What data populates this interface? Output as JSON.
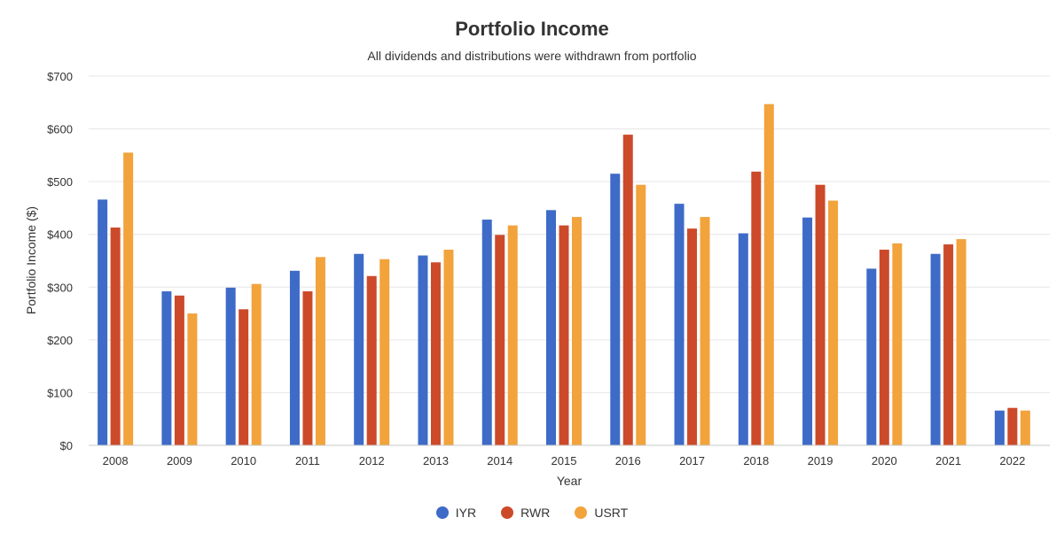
{
  "chart_data": {
    "type": "bar",
    "title": "Portfolio Income",
    "subtitle": "All dividends and distributions were withdrawn from portfolio",
    "xlabel": "Year",
    "ylabel": "Portfolio Income ($)",
    "ylim": [
      0,
      700
    ],
    "yticks": [
      0,
      100,
      200,
      300,
      400,
      500,
      600,
      700
    ],
    "ytick_labels": [
      "$0",
      "$100",
      "$200",
      "$300",
      "$400",
      "$500",
      "$600",
      "$700"
    ],
    "grid": true,
    "legend_position": "bottom-center",
    "categories": [
      "2008",
      "2009",
      "2010",
      "2011",
      "2012",
      "2013",
      "2014",
      "2015",
      "2016",
      "2017",
      "2018",
      "2019",
      "2020",
      "2021",
      "2022"
    ],
    "series": [
      {
        "name": "IYR",
        "color": "#3e6bc7",
        "values": [
          466,
          292,
          299,
          331,
          363,
          360,
          428,
          446,
          515,
          458,
          402,
          432,
          335,
          363,
          66
        ]
      },
      {
        "name": "RWR",
        "color": "#cc4a2a",
        "values": [
          413,
          284,
          258,
          292,
          321,
          347,
          399,
          417,
          589,
          411,
          519,
          494,
          371,
          381,
          71
        ]
      },
      {
        "name": "USRT",
        "color": "#f2a33c",
        "values": [
          555,
          250,
          306,
          357,
          353,
          371,
          417,
          433,
          494,
          433,
          647,
          464,
          383,
          391,
          66
        ]
      }
    ]
  }
}
